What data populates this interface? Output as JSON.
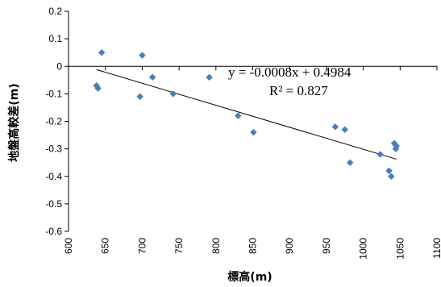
{
  "chart_data": {
    "type": "scatter",
    "xlabel": "標高(m)",
    "ylabel": "地盤高較差(m)",
    "xlim": [
      600,
      1100
    ],
    "ylim": [
      -0.6,
      0.2
    ],
    "x_ticks": [
      "600",
      "650",
      "700",
      "750",
      "800",
      "850",
      "900",
      "950",
      "1000",
      "1050",
      "1100"
    ],
    "y_ticks": [
      "0.2",
      "0.1",
      "0",
      "-0.1",
      "-0.2",
      "-0.3",
      "-0.4",
      "-0.5",
      "-0.6"
    ],
    "grid": false,
    "marker_color": "#4a7ebb",
    "series": [
      {
        "points": [
          {
            "x": 638,
            "y": -0.07
          },
          {
            "x": 640,
            "y": -0.08
          },
          {
            "x": 645,
            "y": 0.05
          },
          {
            "x": 697,
            "y": -0.11
          },
          {
            "x": 700,
            "y": 0.04
          },
          {
            "x": 714,
            "y": -0.04
          },
          {
            "x": 742,
            "y": -0.1
          },
          {
            "x": 791,
            "y": -0.04
          },
          {
            "x": 830,
            "y": -0.18
          },
          {
            "x": 851,
            "y": -0.24
          },
          {
            "x": 962,
            "y": -0.22
          },
          {
            "x": 975,
            "y": -0.23
          },
          {
            "x": 982,
            "y": -0.35
          },
          {
            "x": 1023,
            "y": -0.32
          },
          {
            "x": 1035,
            "y": -0.38
          },
          {
            "x": 1038,
            "y": -0.4
          },
          {
            "x": 1042,
            "y": -0.28
          },
          {
            "x": 1044,
            "y": -0.3
          },
          {
            "x": 1045,
            "y": -0.29
          }
        ]
      }
    ],
    "trendline": {
      "slope": -0.0008,
      "intercept": 0.4984,
      "x_from": 638,
      "x_to": 1045,
      "equation": "y = -0.0008x + 0.4984",
      "r2": "R² = 0.827"
    }
  }
}
